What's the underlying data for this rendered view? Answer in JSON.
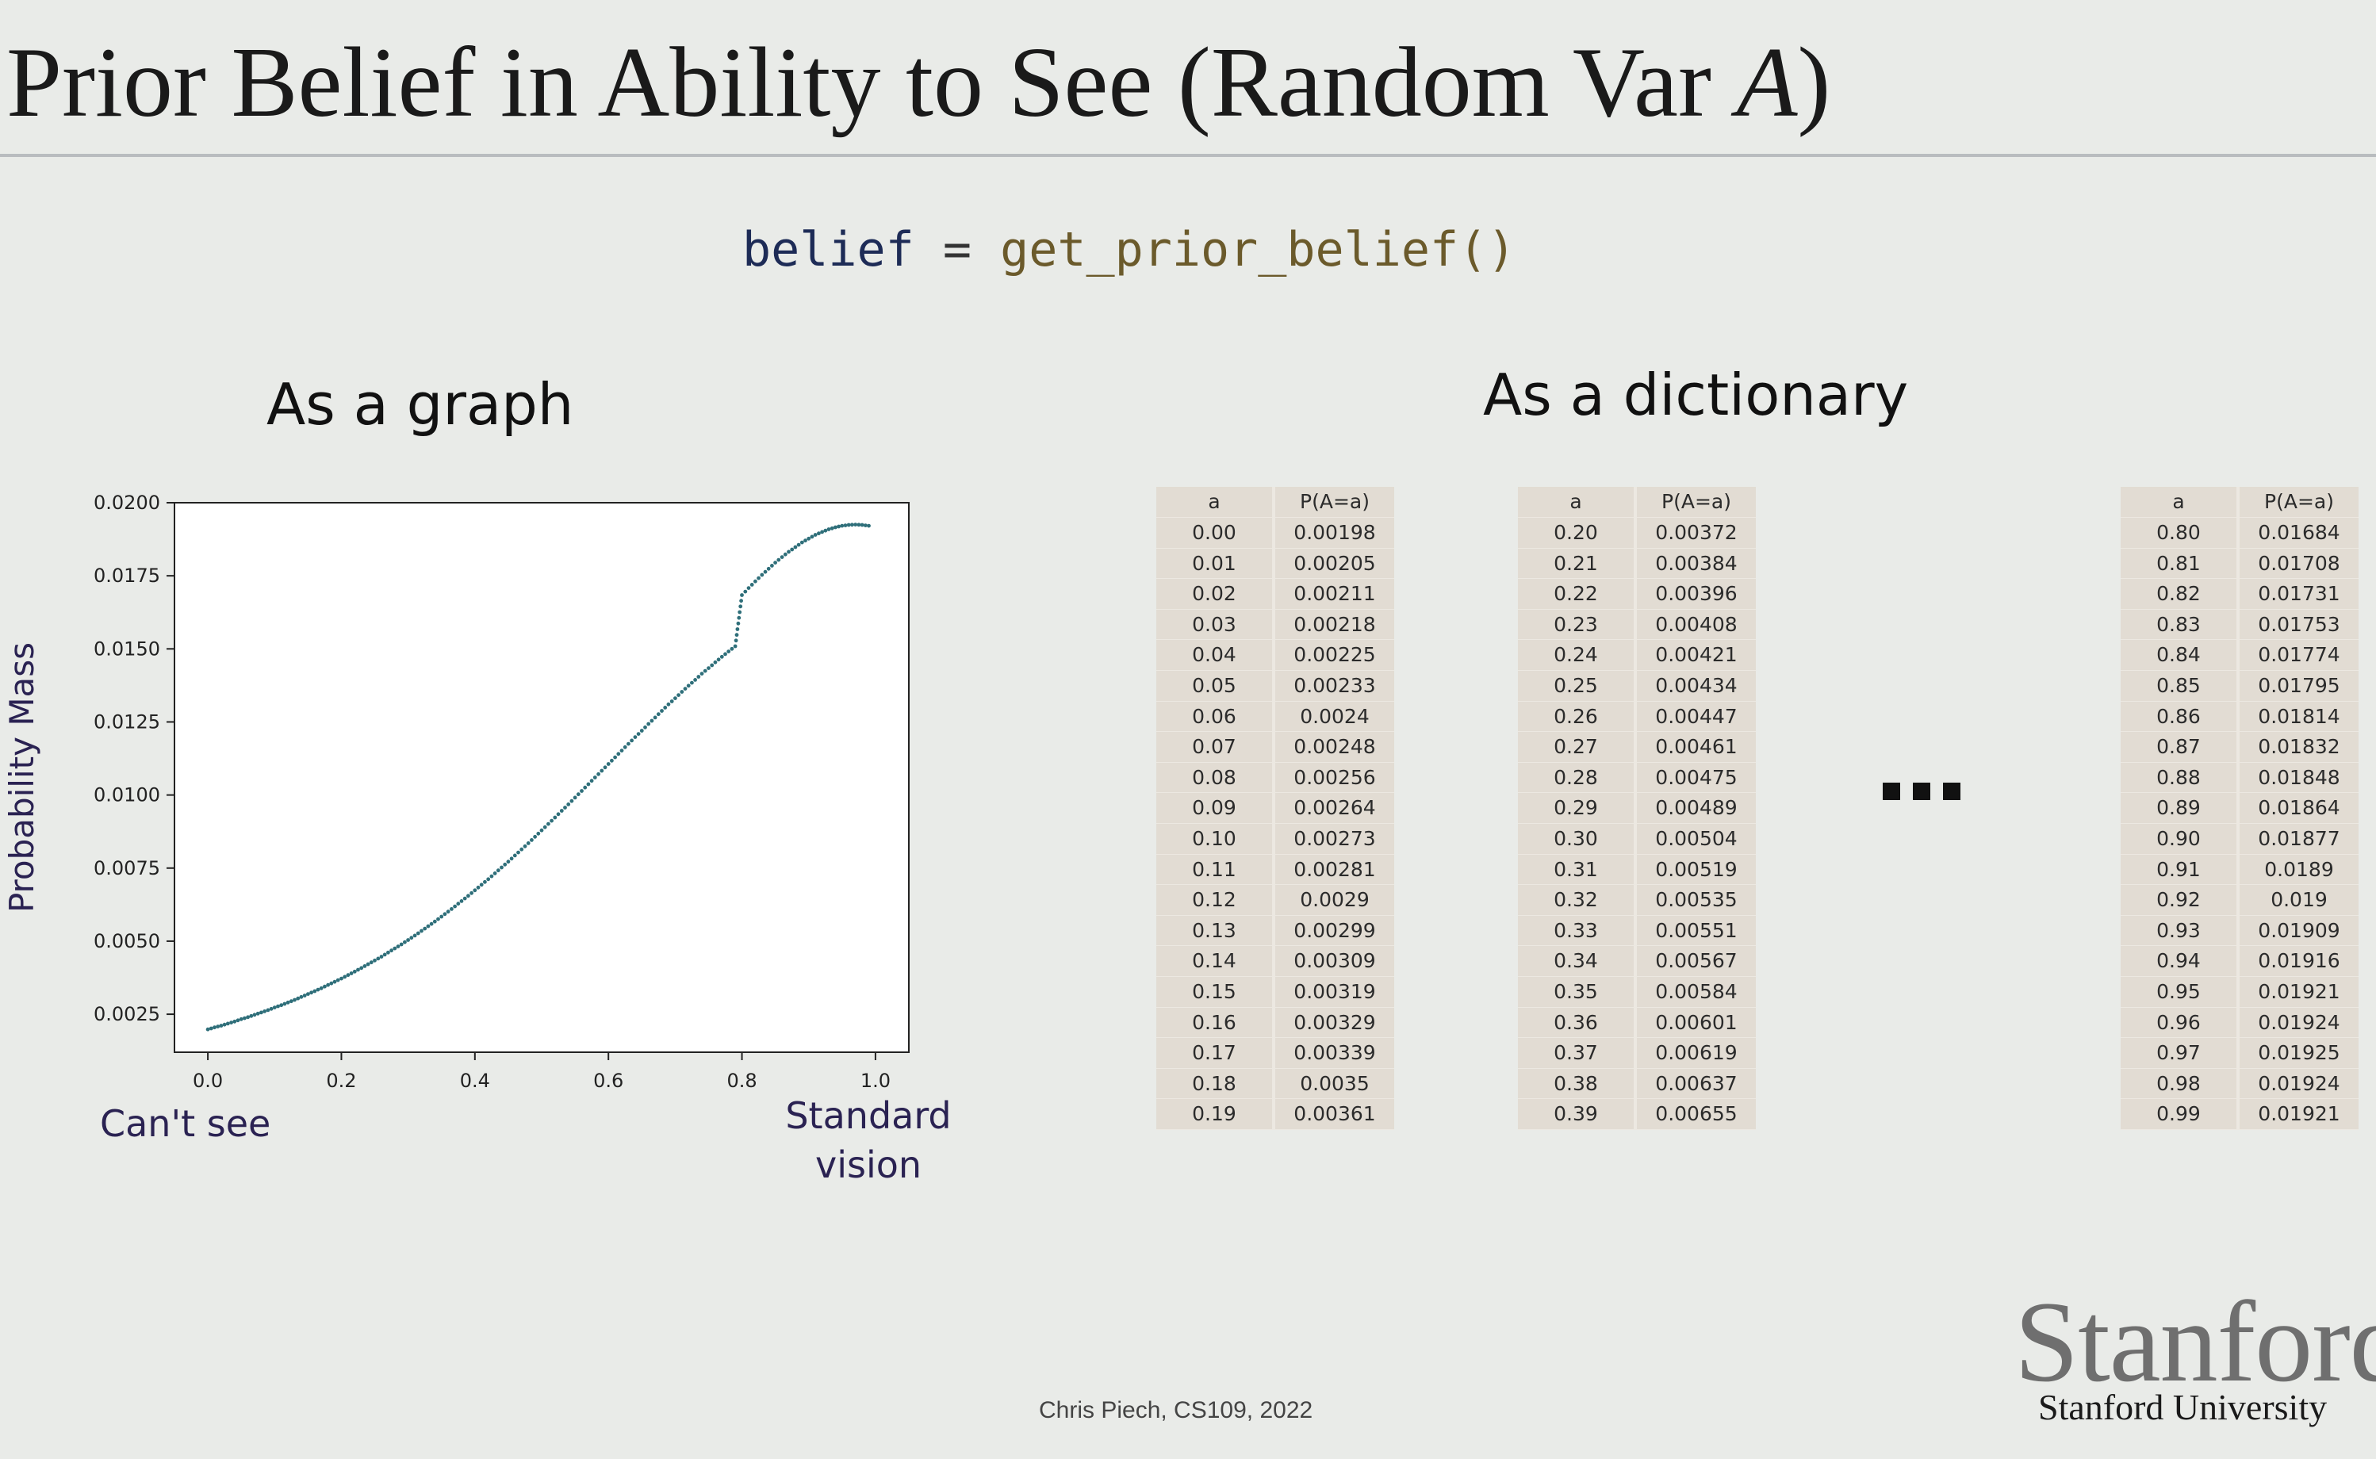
{
  "slide": {
    "title_main": "Prior Belief in Ability to See (Random Var ",
    "title_var": "A",
    "title_close": ")",
    "code": {
      "var": "belief",
      "op": " = ",
      "fn": "get_prior_belief()"
    },
    "graph_heading": "As a graph",
    "dict_heading": "As a dictionary",
    "ellipsis": "...",
    "annotation_left": "Can't see",
    "annotation_right_line1": "Standard",
    "annotation_right_line2": "vision",
    "footer": "Chris Piech, CS109, 2022",
    "logo_word": "Stanford",
    "logo_sub": "Stanford University"
  },
  "chart_data": {
    "type": "scatter",
    "marker": "dotted",
    "color": "#2f6f7a",
    "xlabel": "",
    "ylabel": "Probability Mass",
    "xlim": [
      -0.05,
      1.05
    ],
    "ylim": [
      0.0012,
      0.02
    ],
    "x_ticks": [
      "0.0",
      "0.2",
      "0.4",
      "0.6",
      "0.8",
      "1.0"
    ],
    "y_ticks": [
      "0.0025",
      "0.0050",
      "0.0075",
      "0.0100",
      "0.0125",
      "0.0150",
      "0.0175",
      "0.0200"
    ],
    "x": [
      0.0,
      0.01,
      0.02,
      0.03,
      0.04,
      0.05,
      0.06,
      0.07,
      0.08,
      0.09,
      0.1,
      0.11,
      0.12,
      0.13,
      0.14,
      0.15,
      0.16,
      0.17,
      0.18,
      0.19,
      0.2,
      0.21,
      0.22,
      0.23,
      0.24,
      0.25,
      0.26,
      0.27,
      0.28,
      0.29,
      0.3,
      0.31,
      0.32,
      0.33,
      0.34,
      0.35,
      0.36,
      0.37,
      0.38,
      0.39,
      0.4,
      0.41,
      0.42,
      0.43,
      0.44,
      0.45,
      0.46,
      0.47,
      0.48,
      0.49,
      0.5,
      0.51,
      0.52,
      0.53,
      0.54,
      0.55,
      0.56,
      0.57,
      0.58,
      0.59,
      0.6,
      0.61,
      0.62,
      0.63,
      0.64,
      0.65,
      0.66,
      0.67,
      0.68,
      0.69,
      0.7,
      0.71,
      0.72,
      0.73,
      0.74,
      0.75,
      0.76,
      0.77,
      0.78,
      0.79,
      0.8,
      0.81,
      0.82,
      0.83,
      0.84,
      0.85,
      0.86,
      0.87,
      0.88,
      0.89,
      0.9,
      0.91,
      0.92,
      0.93,
      0.94,
      0.95,
      0.96,
      0.97,
      0.98,
      0.99
    ],
    "y": [
      0.00198,
      0.00205,
      0.00211,
      0.00218,
      0.00225,
      0.00233,
      0.0024,
      0.00248,
      0.00256,
      0.00264,
      0.00273,
      0.00281,
      0.0029,
      0.00299,
      0.00309,
      0.00319,
      0.00329,
      0.00339,
      0.0035,
      0.00361,
      0.00372,
      0.00384,
      0.00396,
      0.00408,
      0.00421,
      0.00434,
      0.00447,
      0.00461,
      0.00475,
      0.00489,
      0.00504,
      0.00519,
      0.00535,
      0.00551,
      0.00567,
      0.00584,
      0.00601,
      0.00619,
      0.00637,
      0.00655,
      0.00674,
      0.00693,
      0.00712,
      0.00732,
      0.00752,
      0.00772,
      0.00793,
      0.00814,
      0.00835,
      0.00857,
      0.00879,
      0.00901,
      0.00923,
      0.00946,
      0.00968,
      0.00991,
      0.01014,
      0.01037,
      0.0106,
      0.01083,
      0.01106,
      0.01129,
      0.01152,
      0.01175,
      0.01198,
      0.0122,
      0.01243,
      0.01265,
      0.01288,
      0.0131,
      0.01331,
      0.01353,
      0.01374,
      0.01394,
      0.01415,
      0.01434,
      0.01454,
      0.01473,
      0.01491,
      0.01509,
      0.01684,
      0.01708,
      0.01731,
      0.01753,
      0.01774,
      0.01795,
      0.01814,
      0.01832,
      0.01848,
      0.01864,
      0.01877,
      0.0189,
      0.019,
      0.01909,
      0.01916,
      0.01921,
      0.01924,
      0.01925,
      0.01924,
      0.01921
    ]
  },
  "tables": [
    {
      "header": [
        "a",
        "P(A=a)"
      ],
      "rows": [
        [
          "0.00",
          "0.00198"
        ],
        [
          "0.01",
          "0.00205"
        ],
        [
          "0.02",
          "0.00211"
        ],
        [
          "0.03",
          "0.00218"
        ],
        [
          "0.04",
          "0.00225"
        ],
        [
          "0.05",
          "0.00233"
        ],
        [
          "0.06",
          "0.0024"
        ],
        [
          "0.07",
          "0.00248"
        ],
        [
          "0.08",
          "0.00256"
        ],
        [
          "0.09",
          "0.00264"
        ],
        [
          "0.10",
          "0.00273"
        ],
        [
          "0.11",
          "0.00281"
        ],
        [
          "0.12",
          "0.0029"
        ],
        [
          "0.13",
          "0.00299"
        ],
        [
          "0.14",
          "0.00309"
        ],
        [
          "0.15",
          "0.00319"
        ],
        [
          "0.16",
          "0.00329"
        ],
        [
          "0.17",
          "0.00339"
        ],
        [
          "0.18",
          "0.0035"
        ],
        [
          "0.19",
          "0.00361"
        ]
      ]
    },
    {
      "header": [
        "a",
        "P(A=a)"
      ],
      "rows": [
        [
          "0.20",
          "0.00372"
        ],
        [
          "0.21",
          "0.00384"
        ],
        [
          "0.22",
          "0.00396"
        ],
        [
          "0.23",
          "0.00408"
        ],
        [
          "0.24",
          "0.00421"
        ],
        [
          "0.25",
          "0.00434"
        ],
        [
          "0.26",
          "0.00447"
        ],
        [
          "0.27",
          "0.00461"
        ],
        [
          "0.28",
          "0.00475"
        ],
        [
          "0.29",
          "0.00489"
        ],
        [
          "0.30",
          "0.00504"
        ],
        [
          "0.31",
          "0.00519"
        ],
        [
          "0.32",
          "0.00535"
        ],
        [
          "0.33",
          "0.00551"
        ],
        [
          "0.34",
          "0.00567"
        ],
        [
          "0.35",
          "0.00584"
        ],
        [
          "0.36",
          "0.00601"
        ],
        [
          "0.37",
          "0.00619"
        ],
        [
          "0.38",
          "0.00637"
        ],
        [
          "0.39",
          "0.00655"
        ]
      ]
    },
    {
      "header": [
        "a",
        "P(A=a)"
      ],
      "rows": [
        [
          "0.80",
          "0.01684"
        ],
        [
          "0.81",
          "0.01708"
        ],
        [
          "0.82",
          "0.01731"
        ],
        [
          "0.83",
          "0.01753"
        ],
        [
          "0.84",
          "0.01774"
        ],
        [
          "0.85",
          "0.01795"
        ],
        [
          "0.86",
          "0.01814"
        ],
        [
          "0.87",
          "0.01832"
        ],
        [
          "0.88",
          "0.01848"
        ],
        [
          "0.89",
          "0.01864"
        ],
        [
          "0.90",
          "0.01877"
        ],
        [
          "0.91",
          "0.0189"
        ],
        [
          "0.92",
          "0.019"
        ],
        [
          "0.93",
          "0.01909"
        ],
        [
          "0.94",
          "0.01916"
        ],
        [
          "0.95",
          "0.01921"
        ],
        [
          "0.96",
          "0.01924"
        ],
        [
          "0.97",
          "0.01925"
        ],
        [
          "0.98",
          "0.01924"
        ],
        [
          "0.99",
          "0.01921"
        ]
      ]
    }
  ]
}
